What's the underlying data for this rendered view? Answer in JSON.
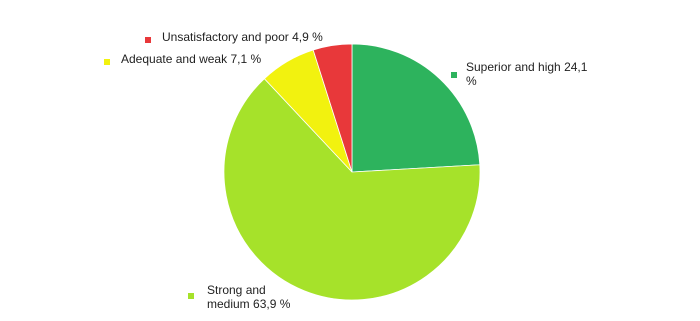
{
  "chart_data": {
    "type": "pie",
    "categories": [
      "Superior and high",
      "Strong and medium",
      "Adequate and weak",
      "Unsatisfactory and poor"
    ],
    "values": [
      24.1,
      63.9,
      7.1,
      4.9
    ],
    "value_labels": [
      "24,1 %",
      "63,9 %",
      "7,1 %",
      "4,9 %"
    ],
    "colors": [
      "#2db35d",
      "#a6e22a",
      "#f2f20f",
      "#e8383a"
    ]
  }
}
